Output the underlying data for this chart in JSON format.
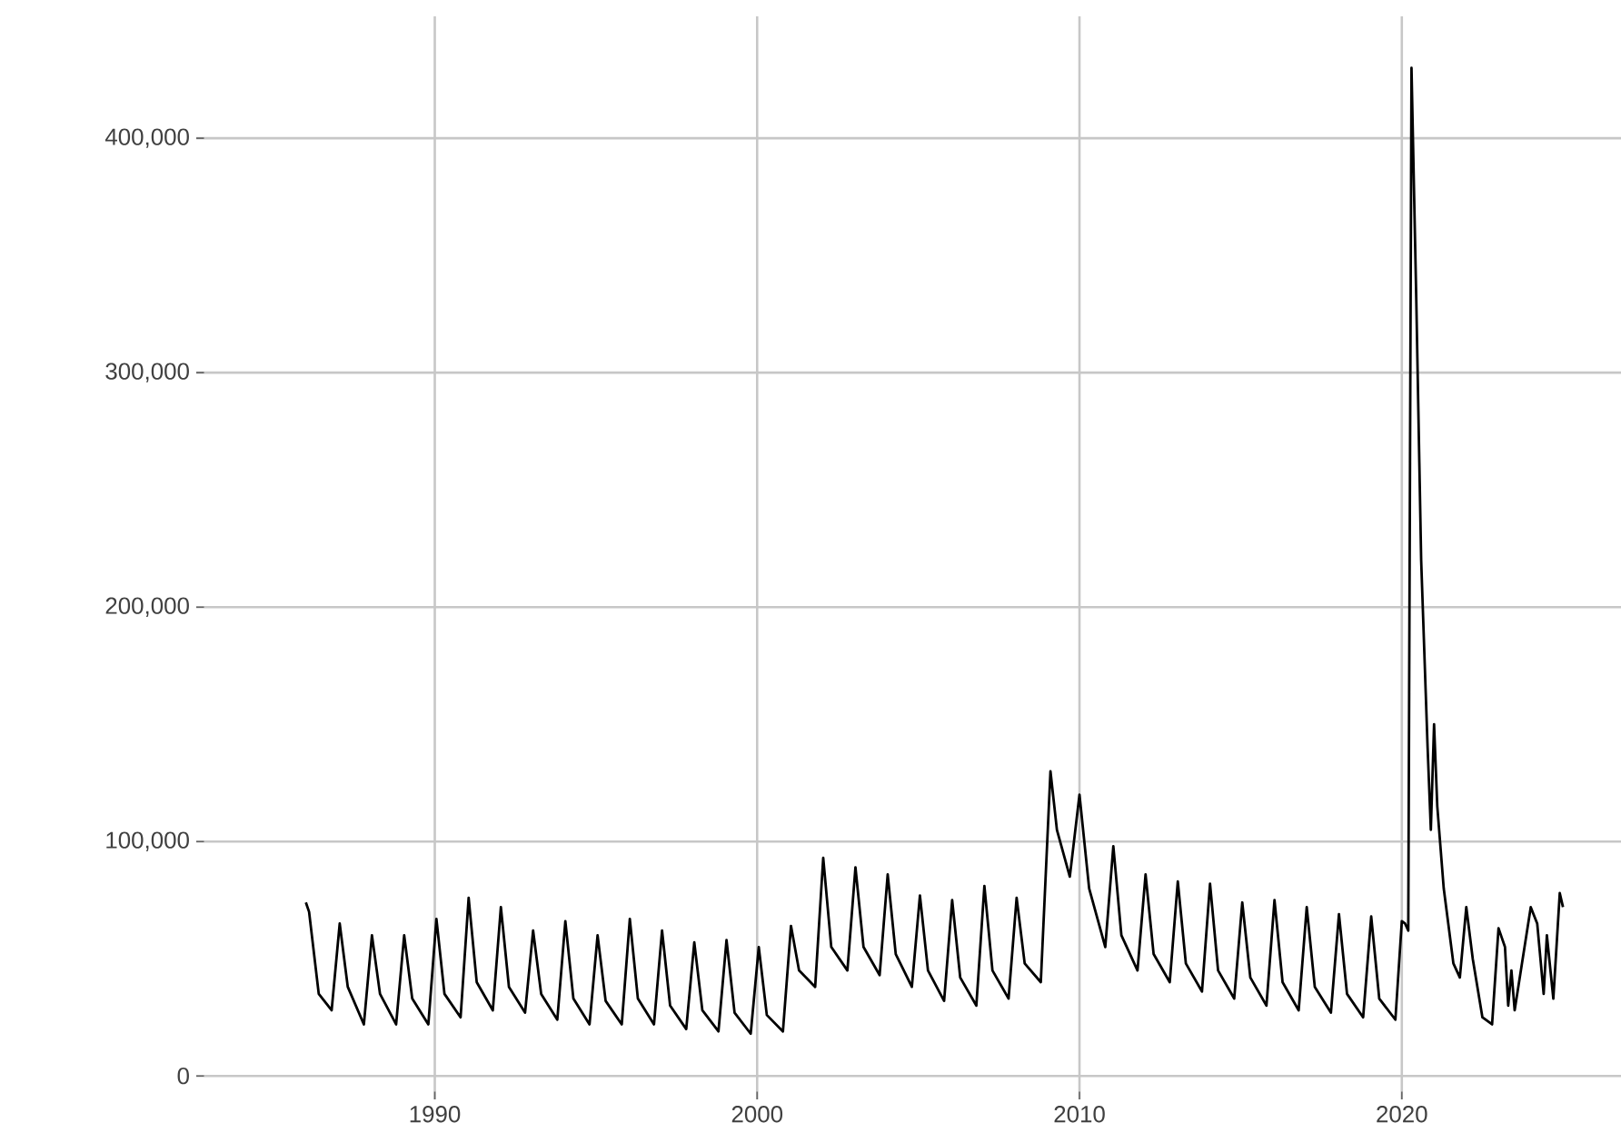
{
  "chart_data": {
    "type": "line",
    "grid": true,
    "xlim": [
      1982.6,
      2026.8
    ],
    "ylim": [
      -10000,
      452000
    ],
    "xticks": [
      1990,
      2000,
      2010,
      2020
    ],
    "yticks": [
      0,
      {
        "value": 100000,
        "label": "100,000"
      },
      {
        "value": 200000,
        "label": "200,000"
      },
      {
        "value": 300000,
        "label": "300,000"
      },
      {
        "value": 400000,
        "label": "400,000"
      }
    ],
    "series": [
      {
        "color": "#000000",
        "x": [
          1986.0,
          1986.1,
          1986.4,
          1986.8,
          1987.05,
          1987.3,
          1987.8,
          1988.05,
          1988.3,
          1988.8,
          1989.05,
          1989.3,
          1989.8,
          1990.05,
          1990.3,
          1990.8,
          1991.05,
          1991.3,
          1991.8,
          1992.05,
          1992.3,
          1992.8,
          1993.05,
          1993.3,
          1993.8,
          1994.05,
          1994.3,
          1994.8,
          1995.05,
          1995.3,
          1995.8,
          1996.05,
          1996.3,
          1996.8,
          1997.05,
          1997.3,
          1997.8,
          1998.05,
          1998.3,
          1998.8,
          1999.05,
          1999.3,
          1999.8,
          2000.05,
          2000.3,
          2000.8,
          2001.05,
          2001.3,
          2001.8,
          2002.05,
          2002.3,
          2002.8,
          2003.05,
          2003.3,
          2003.8,
          2004.05,
          2004.3,
          2004.8,
          2005.05,
          2005.3,
          2005.8,
          2006.05,
          2006.3,
          2006.8,
          2007.05,
          2007.3,
          2007.8,
          2008.05,
          2008.3,
          2008.8,
          2009.1,
          2009.3,
          2009.7,
          2010.0,
          2010.3,
          2010.8,
          2011.05,
          2011.3,
          2011.8,
          2012.05,
          2012.3,
          2012.8,
          2013.05,
          2013.3,
          2013.8,
          2014.05,
          2014.3,
          2014.8,
          2015.05,
          2015.3,
          2015.8,
          2016.05,
          2016.3,
          2016.8,
          2017.05,
          2017.3,
          2017.8,
          2018.05,
          2018.3,
          2018.8,
          2019.05,
          2019.3,
          2019.8,
          2020.0,
          2020.1,
          2020.2,
          2020.3,
          2020.45,
          2020.6,
          2020.8,
          2020.9,
          2021.0,
          2021.1,
          2021.3,
          2021.6,
          2021.8,
          2022.0,
          2022.2,
          2022.5,
          2022.8,
          2023.0,
          2023.2,
          2023.3,
          2023.4,
          2023.5,
          2024.0,
          2024.2,
          2024.4,
          2024.5,
          2024.7,
          2024.9,
          2025.0
        ],
        "values": [
          74000,
          70000,
          35000,
          28000,
          65000,
          38000,
          22000,
          60000,
          35000,
          22000,
          60000,
          33000,
          22000,
          67000,
          35000,
          25000,
          76000,
          40000,
          28000,
          72000,
          38000,
          27000,
          62000,
          35000,
          24000,
          66000,
          33000,
          22000,
          60000,
          32000,
          22000,
          67000,
          33000,
          22000,
          62000,
          30000,
          20000,
          57000,
          28000,
          19000,
          58000,
          27000,
          18000,
          55000,
          26000,
          19000,
          64000,
          45000,
          38000,
          93000,
          55000,
          45000,
          89000,
          55000,
          43000,
          86000,
          52000,
          38000,
          77000,
          45000,
          32000,
          75000,
          42000,
          30000,
          81000,
          45000,
          33000,
          76000,
          48000,
          40000,
          130000,
          105000,
          85000,
          120000,
          80000,
          55000,
          98000,
          60000,
          45000,
          86000,
          52000,
          40000,
          83000,
          48000,
          36000,
          82000,
          45000,
          33000,
          74000,
          42000,
          30000,
          75000,
          40000,
          28000,
          72000,
          38000,
          27000,
          69000,
          35000,
          25000,
          68000,
          33000,
          24000,
          66000,
          65000,
          62000,
          430000,
          330000,
          220000,
          140000,
          105000,
          150000,
          115000,
          80000,
          48000,
          42000,
          72000,
          50000,
          25000,
          22000,
          63000,
          55000,
          30000,
          45000,
          28000,
          72000,
          65000,
          35000,
          60000,
          33000,
          78000,
          72000
        ]
      }
    ]
  }
}
